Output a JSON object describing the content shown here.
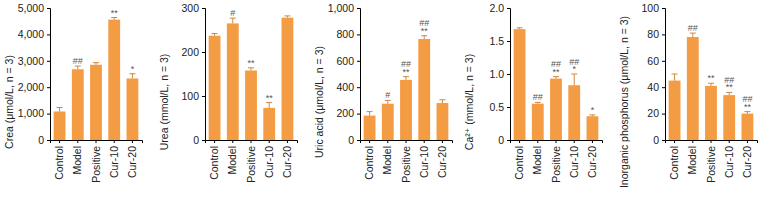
{
  "chart_data": [
    {
      "type": "bar",
      "y_label": "Crea (μmol/L, n = 3)",
      "color": "#f39c44",
      "categories": [
        "Control",
        "Model",
        "Positive",
        "Cur-10",
        "Cur-20"
      ],
      "values": [
        1080,
        2680,
        2850,
        4560,
        2330
      ],
      "errors": [
        150,
        120,
        80,
        80,
        180
      ],
      "annotations": [
        [],
        [
          "##"
        ],
        [],
        [
          "**"
        ],
        [
          "*"
        ]
      ],
      "ylim": [
        0,
        5000
      ],
      "yticks": [
        0,
        {
          "value": 1000,
          "label": "1,000"
        },
        {
          "value": 2000,
          "label": "2,000"
        },
        {
          "value": 3000,
          "label": "3,000"
        },
        {
          "value": 4000,
          "label": "4,000"
        },
        {
          "value": 5000,
          "label": "5,000"
        }
      ]
    },
    {
      "type": "bar",
      "y_label": "Urea (mmol/L, n = 3)",
      "color": "#f39c44",
      "categories": [
        "Control",
        "Model",
        "Positive",
        "Cur-10",
        "Cur-20"
      ],
      "values": [
        237,
        265,
        158,
        73,
        278
      ],
      "errors": [
        5,
        12,
        6,
        12,
        4
      ],
      "annotations": [
        [],
        [
          "#"
        ],
        [
          "**"
        ],
        [
          "**"
        ],
        []
      ],
      "ylim": [
        0,
        300
      ],
      "yticks": [
        0,
        100,
        200,
        300
      ]
    },
    {
      "type": "bar",
      "y_label": "Uric acid (μmol/L, n = 3)",
      "color": "#f39c44",
      "categories": [
        "Control",
        "Model",
        "Positive",
        "Cur-10",
        "Cur-20"
      ],
      "values": [
        185,
        275,
        455,
        765,
        280
      ],
      "errors": [
        30,
        25,
        25,
        25,
        25
      ],
      "annotations": [
        [],
        [
          "#"
        ],
        [
          "##",
          "**"
        ],
        [
          "##",
          "**"
        ],
        []
      ],
      "ylim": [
        0,
        1000
      ],
      "yticks": [
        0,
        200,
        400,
        600,
        800,
        {
          "value": 1000,
          "label": "1,000"
        }
      ]
    },
    {
      "type": "bar",
      "y_label": "Ca²⁺ (mmol/L, n = 3)",
      "color": "#f39c44",
      "categories": [
        "Control",
        "Model",
        "Positive",
        "Cur-10",
        "Cur-20"
      ],
      "values": [
        1.68,
        0.55,
        0.93,
        0.83,
        0.36
      ],
      "errors": [
        0.02,
        0.02,
        0.03,
        0.17,
        0.02
      ],
      "annotations": [
        [],
        [
          "##"
        ],
        [
          "##",
          "**"
        ],
        [
          "##",
          "*"
        ],
        [
          "*"
        ]
      ],
      "ylim": [
        0,
        2.0
      ],
      "yticks": [
        0,
        0.5,
        {
          "value": 1.0,
          "label": "1.0"
        },
        1.5,
        {
          "value": 2.0,
          "label": "2.0"
        }
      ]
    },
    {
      "type": "bar",
      "y_label": "Inorganic phosphorus (μmol/L, n = 3)",
      "color": "#f39c44",
      "categories": [
        "Control",
        "Model",
        "Positive",
        "Cur-10",
        "Cur-20"
      ],
      "values": [
        45,
        78,
        41,
        34,
        20
      ],
      "errors": [
        5,
        3,
        2,
        2,
        1.5
      ],
      "annotations": [
        [],
        [
          "##"
        ],
        [
          "**"
        ],
        [
          "##",
          "**"
        ],
        [
          "##",
          "**"
        ]
      ],
      "ylim": [
        0,
        100
      ],
      "yticks": [
        0,
        20,
        40,
        60,
        80,
        100
      ]
    }
  ]
}
